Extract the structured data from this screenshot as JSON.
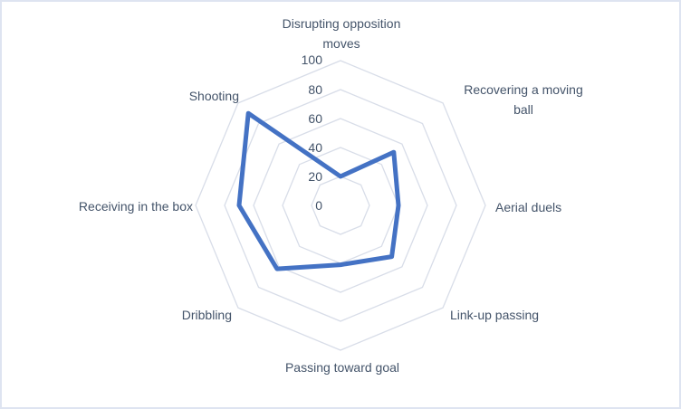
{
  "chart": {
    "background_color": "#ffffff",
    "border_color": "#dee4f1",
    "grid_color": "#d8dde8",
    "series_color": "#4472C4",
    "label_color": "#44546A",
    "series_stroke_width": 5
  },
  "chart_data": {
    "type": "radar",
    "categories": [
      "Disrupting opposition moves",
      "Recovering a moving ball",
      "Aerial duels",
      "Link-up passing",
      "Passing toward goal",
      "Dribbling",
      "Receiving in the box",
      "Shooting"
    ],
    "series": [
      {
        "values": [
          20,
          52,
          40,
          50,
          41,
          62,
          70,
          90
        ]
      }
    ],
    "axis": {
      "min": 0,
      "max": 100,
      "step": 20,
      "ticks": [
        "0",
        "20",
        "40",
        "60",
        "80",
        "100"
      ]
    },
    "layout": {
      "start_axis": "top",
      "direction": "clockwise",
      "gridlines": "concentric-octagons",
      "radial_spokes": false,
      "fill": "none",
      "legend": "none",
      "title": ""
    }
  }
}
